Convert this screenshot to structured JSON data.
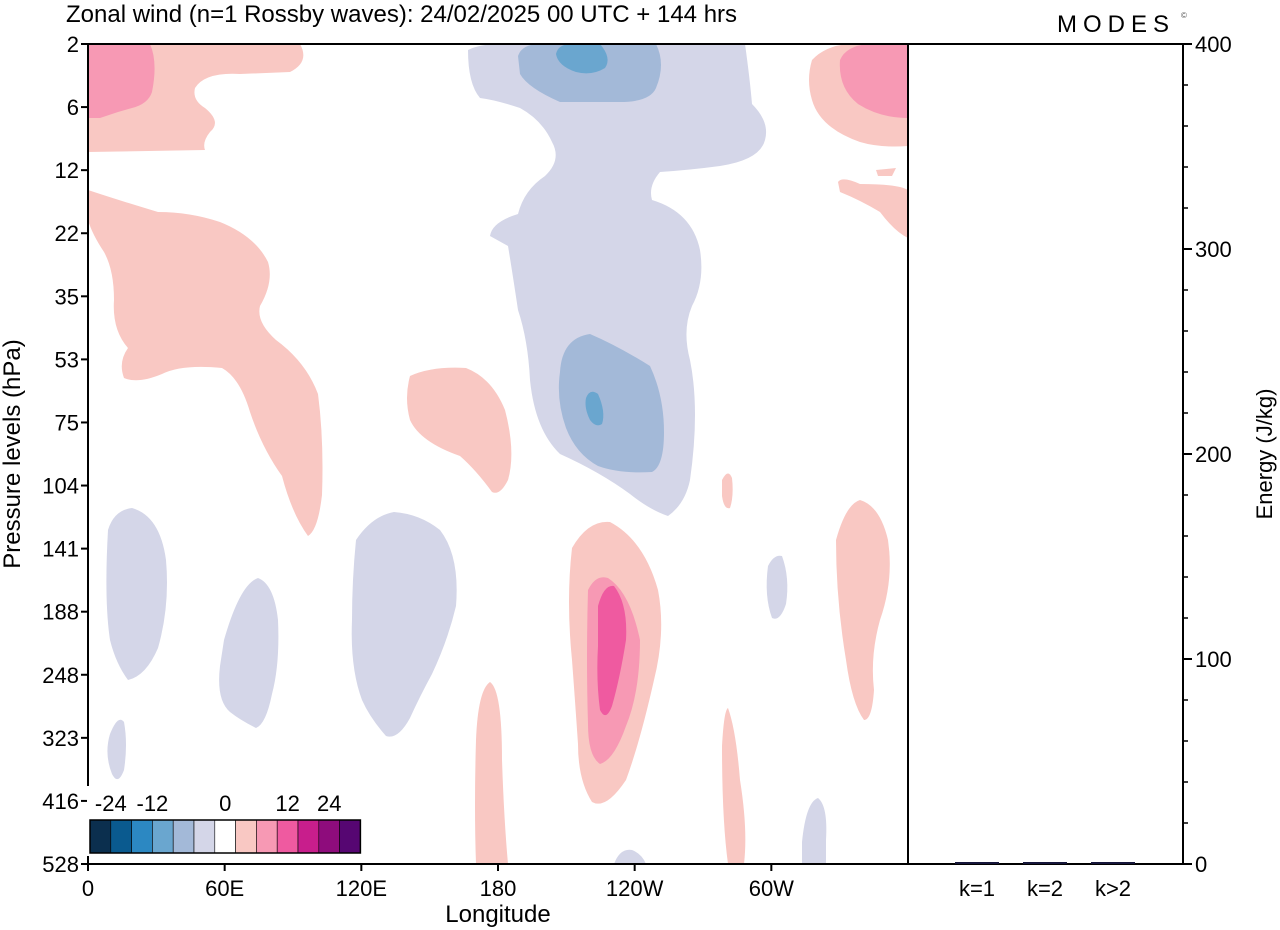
{
  "chart_data": [
    {
      "type": "heatmap",
      "title": "Zonal wind (n=1 Rossby waves):  24/02/2025  00 UTC  + 144 hrs",
      "logo": "MODES",
      "xlabel": "Longitude",
      "ylabel": "Pressure levels (hPa)",
      "x_ticks": [
        "0",
        "60E",
        "120E",
        "180",
        "120W",
        "60W"
      ],
      "x_range": [
        0,
        360
      ],
      "y_ticks": [
        "2",
        "6",
        "12",
        "22",
        "35",
        "53",
        "75",
        "104",
        "141",
        "188",
        "248",
        "323",
        "416",
        "528"
      ],
      "colorbar": {
        "labels": [
          "-24",
          "-12",
          "0",
          "12",
          "24"
        ],
        "levels": [
          -30,
          -24,
          -18,
          -12,
          -6,
          -3,
          3,
          6,
          12,
          18,
          24,
          30
        ],
        "colors": [
          "#0b2f4e",
          "#0a5a8f",
          "#2c88c2",
          "#6aa6cf",
          "#a3b9d8",
          "#d4d6e8",
          "#ffffff",
          "#f9c8c3",
          "#f799b4",
          "#ef5aa0",
          "#c81e8c",
          "#8e0c7c",
          "#560672"
        ]
      },
      "regions": [
        {
          "level": "pos1",
          "center": [
            5,
            3
          ],
          "note": "top-left positive"
        },
        {
          "level": "neg1",
          "center": [
            105,
            40
          ],
          "note": "mid-column negative"
        },
        {
          "level": "pos3",
          "center": [
            120,
            190
          ],
          "note": "positive maximum near 120W"
        }
      ]
    },
    {
      "type": "bar",
      "categories": [
        "k=1",
        "k=2",
        "k>2"
      ],
      "values": [
        0.3,
        0.2,
        0.6
      ],
      "ylabel": "Energy (J/kg)",
      "ylim": [
        0,
        400
      ],
      "y_ticks": [
        0,
        100,
        200,
        300,
        400
      ]
    }
  ]
}
